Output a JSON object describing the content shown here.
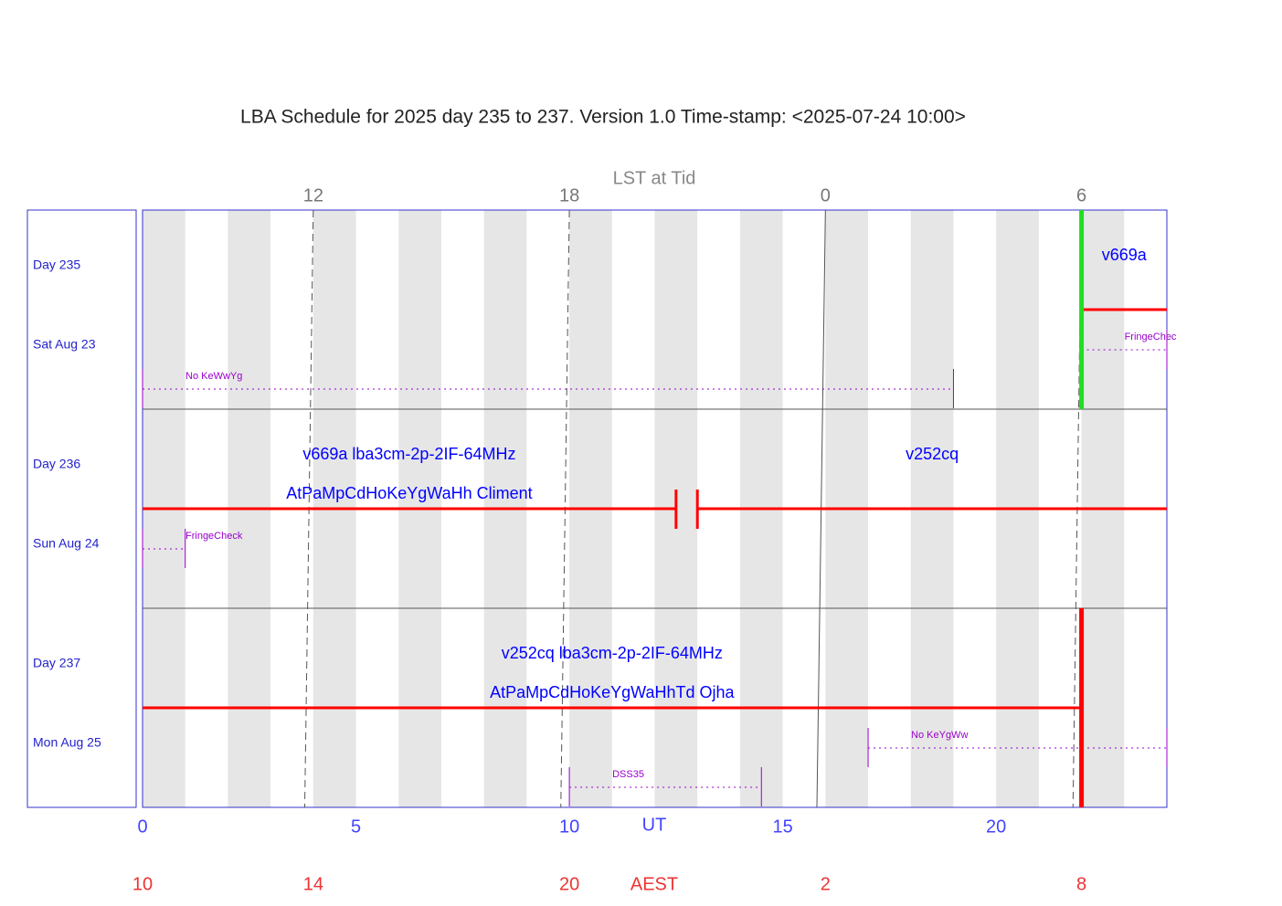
{
  "chart_data": {
    "type": "schedule",
    "title": "LBA Schedule for 2025 day 235 to 237. Version 1.0 Time-stamp: <2025-07-24 10:00>",
    "lst_label": "LST at Tid",
    "xlabel": "UT",
    "aest_label": "AEST",
    "xlim": [
      0,
      24
    ],
    "xticks": [
      0,
      5,
      10,
      15,
      20
    ],
    "lst_ticks": [
      {
        "value": 12,
        "ut_top": 4.0,
        "ut_bottom": 3.8,
        "dashed": true
      },
      {
        "value": 18,
        "ut_top": 10.0,
        "ut_bottom": 9.8,
        "dashed": true
      },
      {
        "value": 0,
        "ut_top": 16.0,
        "ut_bottom": 15.8,
        "dashed": false
      },
      {
        "value": 6,
        "ut_top": 22.0,
        "ut_bottom": 21.8,
        "dashed": true
      }
    ],
    "aest_ticks": [
      {
        "value": 10,
        "ut": 0
      },
      {
        "value": 14,
        "ut": 4
      },
      {
        "value": 20,
        "ut": 10
      },
      {
        "value": 2,
        "ut": 16
      },
      {
        "value": 8,
        "ut": 22
      }
    ],
    "session_color": "#ff0000",
    "label_color": "#0000ff",
    "test_color": "#9900cc",
    "rows": [
      {
        "day_label": "Day 235",
        "date": "Sat Aug 23",
        "sessions": [
          {
            "start": 22,
            "end": 24,
            "labels": [
              "v669a"
            ]
          }
        ],
        "markers": [
          {
            "ut": 22,
            "color": "#22dd22"
          }
        ],
        "tests": [
          {
            "start": 22,
            "end": 24,
            "label": "FringeChec"
          },
          {
            "start": 0,
            "end": 19,
            "label": "No KeWwYg"
          }
        ]
      },
      {
        "day_label": "Day 236",
        "date": "Sun Aug 24",
        "sessions": [
          {
            "start": 0,
            "end": 12.5,
            "labels": [
              "v669a lba3cm-2p-2IF-64MHz",
              "AtPaMpCdHoKeYgWaHh Climent"
            ]
          },
          {
            "start": 13,
            "end": 24,
            "labels": [
              "v252cq"
            ]
          }
        ],
        "markers": [],
        "tests": [
          {
            "start": 0,
            "end": 1,
            "label": "FringeCheck"
          }
        ]
      },
      {
        "day_label": "Day 237",
        "date": "Mon Aug 25",
        "sessions": [
          {
            "start": 0,
            "end": 22,
            "labels": [
              "v252cq lba3cm-2p-2IF-64MHz",
              "AtPaMpCdHoKeYgWaHhTd Ojha"
            ]
          }
        ],
        "markers": [
          {
            "ut": 22,
            "color": "#ff0000"
          }
        ],
        "tests": [
          {
            "start": 17,
            "end": 24,
            "label": "No KeYgWw"
          },
          {
            "start": 10,
            "end": 14.5,
            "label": "DSS35"
          }
        ]
      }
    ]
  }
}
